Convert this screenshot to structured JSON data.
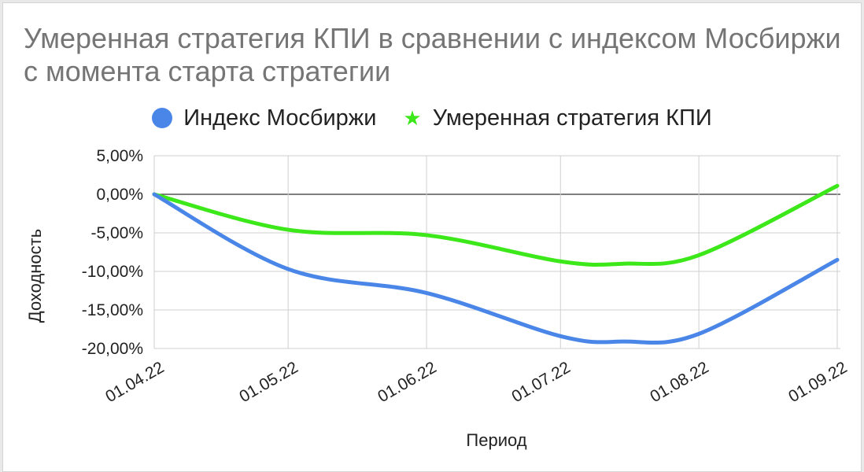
{
  "chart_data": {
    "type": "line",
    "title": "Умеренная стратегия КПИ в сравнении с индексом Мосбиржи с момента старта стратегии",
    "xlabel": "Период",
    "ylabel": "Доходность",
    "x_ticks": [
      "01.04.22",
      "01.05.22",
      "01.06.22",
      "01.07.22",
      "01.08.22",
      "01.09.22"
    ],
    "y_ticks": [
      "5,00%",
      "0,00%",
      "-5,00%",
      "-10,00%",
      "-15,00%",
      "-20,00%"
    ],
    "ylim": [
      -20,
      5
    ],
    "x_domain": [
      "2022-04-01",
      "2022-09-01"
    ],
    "grid": true,
    "legend_position": "top",
    "series": [
      {
        "name": "Индекс Мосбиржи",
        "color": "#4a86e8",
        "marker": "circle",
        "x": [
          "2022-04-01",
          "2022-05-01",
          "2022-06-01",
          "2022-07-01",
          "2022-07-15",
          "2022-08-01",
          "2022-09-01"
        ],
        "y": [
          0,
          -9.7,
          -12.8,
          -18.4,
          -19.1,
          -18.1,
          -8.5
        ]
      },
      {
        "name": "Умеренная стратегия КПИ",
        "color": "#3de81a",
        "marker": "star",
        "x": [
          "2022-04-01",
          "2022-05-01",
          "2022-06-01",
          "2022-07-01",
          "2022-07-15",
          "2022-08-01",
          "2022-09-01"
        ],
        "y": [
          0,
          -4.6,
          -5.3,
          -8.7,
          -9.0,
          -7.9,
          1.1
        ]
      }
    ]
  }
}
